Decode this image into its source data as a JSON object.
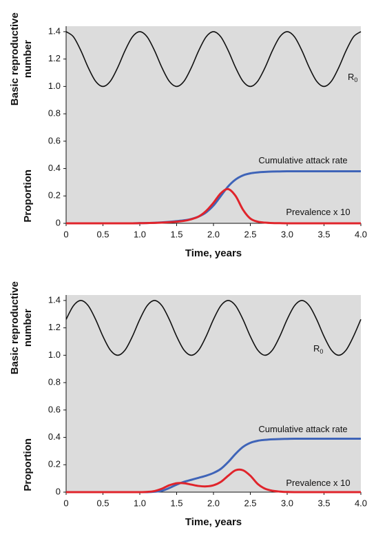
{
  "chart_data": [
    {
      "type": "line",
      "x_label": "Time, years",
      "y_label_top": [
        "Basic reproductive",
        "number"
      ],
      "y_label_bottom": "Proportion",
      "x": [
        0,
        0.1,
        0.2,
        0.3,
        0.4,
        0.5,
        0.6,
        0.7,
        0.8,
        0.9,
        1.0,
        1.1,
        1.2,
        1.3,
        1.4,
        1.5,
        1.6,
        1.7,
        1.8,
        1.9,
        2.0,
        2.1,
        2.2,
        2.3,
        2.4,
        2.5,
        2.6,
        2.7,
        2.8,
        2.9,
        3.0,
        3.1,
        3.2,
        3.3,
        3.4,
        3.5,
        3.6,
        3.7,
        3.8,
        3.9,
        4.0
      ],
      "series": [
        {
          "color": "#111111",
          "values": [
            1.4,
            1.362,
            1.262,
            1.138,
            1.038,
            1.0,
            1.038,
            1.138,
            1.262,
            1.362,
            1.4,
            1.362,
            1.262,
            1.138,
            1.038,
            1.0,
            1.038,
            1.138,
            1.262,
            1.362,
            1.4,
            1.362,
            1.262,
            1.138,
            1.038,
            1.0,
            1.038,
            1.138,
            1.262,
            1.362,
            1.4,
            1.362,
            1.262,
            1.138,
            1.038,
            1.0,
            1.038,
            1.138,
            1.262,
            1.362,
            1.4
          ]
        },
        {
          "color": "#3f64b8",
          "values": [
            0,
            0,
            0,
            0,
            0,
            0,
            0,
            0,
            0,
            0,
            0.001,
            0.002,
            0.004,
            0.007,
            0.011,
            0.016,
            0.022,
            0.032,
            0.05,
            0.08,
            0.13,
            0.2,
            0.27,
            0.32,
            0.35,
            0.365,
            0.372,
            0.376,
            0.378,
            0.379,
            0.38,
            0.38,
            0.38,
            0.38,
            0.38,
            0.38,
            0.38,
            0.38,
            0.38,
            0.38,
            0.38
          ]
        },
        {
          "color": "#e0242b",
          "values": [
            0,
            0,
            0,
            0,
            0,
            0,
            0,
            0,
            0,
            0,
            0.001,
            0.002,
            0.003,
            0.005,
            0.008,
            0.012,
            0.018,
            0.03,
            0.05,
            0.09,
            0.15,
            0.22,
            0.25,
            0.2,
            0.1,
            0.035,
            0.012,
            0.005,
            0.002,
            0.001,
            0,
            0,
            0,
            0,
            0,
            0,
            0,
            0,
            0,
            0,
            0
          ]
        }
      ],
      "annotations": [
        {
          "text": "R",
          "subscript": "0"
        },
        {
          "text": "Cumulative attack rate"
        },
        {
          "text": "Prevalence x 10"
        }
      ],
      "xlim": [
        0,
        4
      ],
      "xticks": [
        0,
        0.5,
        {
          "value": 1,
          "label": "1.0"
        },
        1.5,
        {
          "value": 2,
          "label": "2.0"
        },
        2.5,
        {
          "value": 3,
          "label": "3.0"
        },
        3.5,
        {
          "value": 4,
          "label": "4.0"
        }
      ],
      "ylim": [
        0,
        1.44
      ],
      "yticks": [
        0,
        0.2,
        0.4,
        0.6,
        0.8,
        {
          "value": 1,
          "label": "1.0"
        },
        1.2,
        1.4
      ],
      "background": "#dcdcdc"
    },
    {
      "type": "line",
      "x_label": "Time, years",
      "y_label_top": [
        "Basic reproductive",
        "number"
      ],
      "y_label_bottom": "Proportion",
      "x": [
        0,
        0.1,
        0.2,
        0.3,
        0.4,
        0.5,
        0.6,
        0.7,
        0.8,
        0.9,
        1.0,
        1.1,
        1.2,
        1.3,
        1.4,
        1.5,
        1.6,
        1.7,
        1.8,
        1.9,
        2.0,
        2.1,
        2.2,
        2.3,
        2.4,
        2.5,
        2.6,
        2.7,
        2.8,
        2.9,
        3.0,
        3.1,
        3.2,
        3.3,
        3.4,
        3.5,
        3.6,
        3.7,
        3.8,
        3.9,
        4.0
      ],
      "series": [
        {
          "color": "#111111",
          "values": [
            1.262,
            1.362,
            1.4,
            1.362,
            1.262,
            1.138,
            1.038,
            1.0,
            1.038,
            1.138,
            1.262,
            1.362,
            1.4,
            1.362,
            1.262,
            1.138,
            1.038,
            1.0,
            1.038,
            1.138,
            1.262,
            1.362,
            1.4,
            1.362,
            1.262,
            1.138,
            1.038,
            1.0,
            1.038,
            1.138,
            1.262,
            1.362,
            1.4,
            1.362,
            1.262,
            1.138,
            1.038,
            1.0,
            1.038,
            1.138,
            1.262
          ]
        },
        {
          "color": "#3f64b8",
          "values": [
            0,
            0,
            0,
            0,
            0,
            0,
            0,
            0,
            0,
            0,
            0,
            0,
            0.003,
            0.01,
            0.03,
            0.055,
            0.075,
            0.09,
            0.105,
            0.12,
            0.14,
            0.17,
            0.22,
            0.28,
            0.33,
            0.36,
            0.375,
            0.382,
            0.386,
            0.388,
            0.389,
            0.39,
            0.39,
            0.39,
            0.39,
            0.39,
            0.39,
            0.39,
            0.39,
            0.39,
            0.39
          ]
        },
        {
          "color": "#e0242b",
          "values": [
            0,
            0,
            0,
            0,
            0,
            0,
            0,
            0,
            0,
            0,
            0,
            0.002,
            0.008,
            0.025,
            0.05,
            0.065,
            0.065,
            0.055,
            0.045,
            0.042,
            0.05,
            0.075,
            0.12,
            0.16,
            0.16,
            0.12,
            0.06,
            0.025,
            0.01,
            0.004,
            0.001,
            0,
            0,
            0,
            0,
            0,
            0,
            0,
            0,
            0,
            0
          ]
        }
      ],
      "annotations": [
        {
          "text": "R",
          "subscript": "0"
        },
        {
          "text": "Cumulative attack rate"
        },
        {
          "text": "Prevalence x 10"
        }
      ],
      "xlim": [
        0,
        4
      ],
      "xticks": [
        0,
        0.5,
        {
          "value": 1,
          "label": "1.0"
        },
        1.5,
        {
          "value": 2,
          "label": "2.0"
        },
        2.5,
        {
          "value": 3,
          "label": "3.0"
        },
        3.5,
        {
          "value": 4,
          "label": "4.0"
        }
      ],
      "ylim": [
        0,
        1.44
      ],
      "yticks": [
        0,
        0.2,
        0.4,
        0.6,
        0.8,
        {
          "value": 1,
          "label": "1.0"
        },
        1.2,
        1.4
      ],
      "background": "#dcdcdc"
    }
  ]
}
